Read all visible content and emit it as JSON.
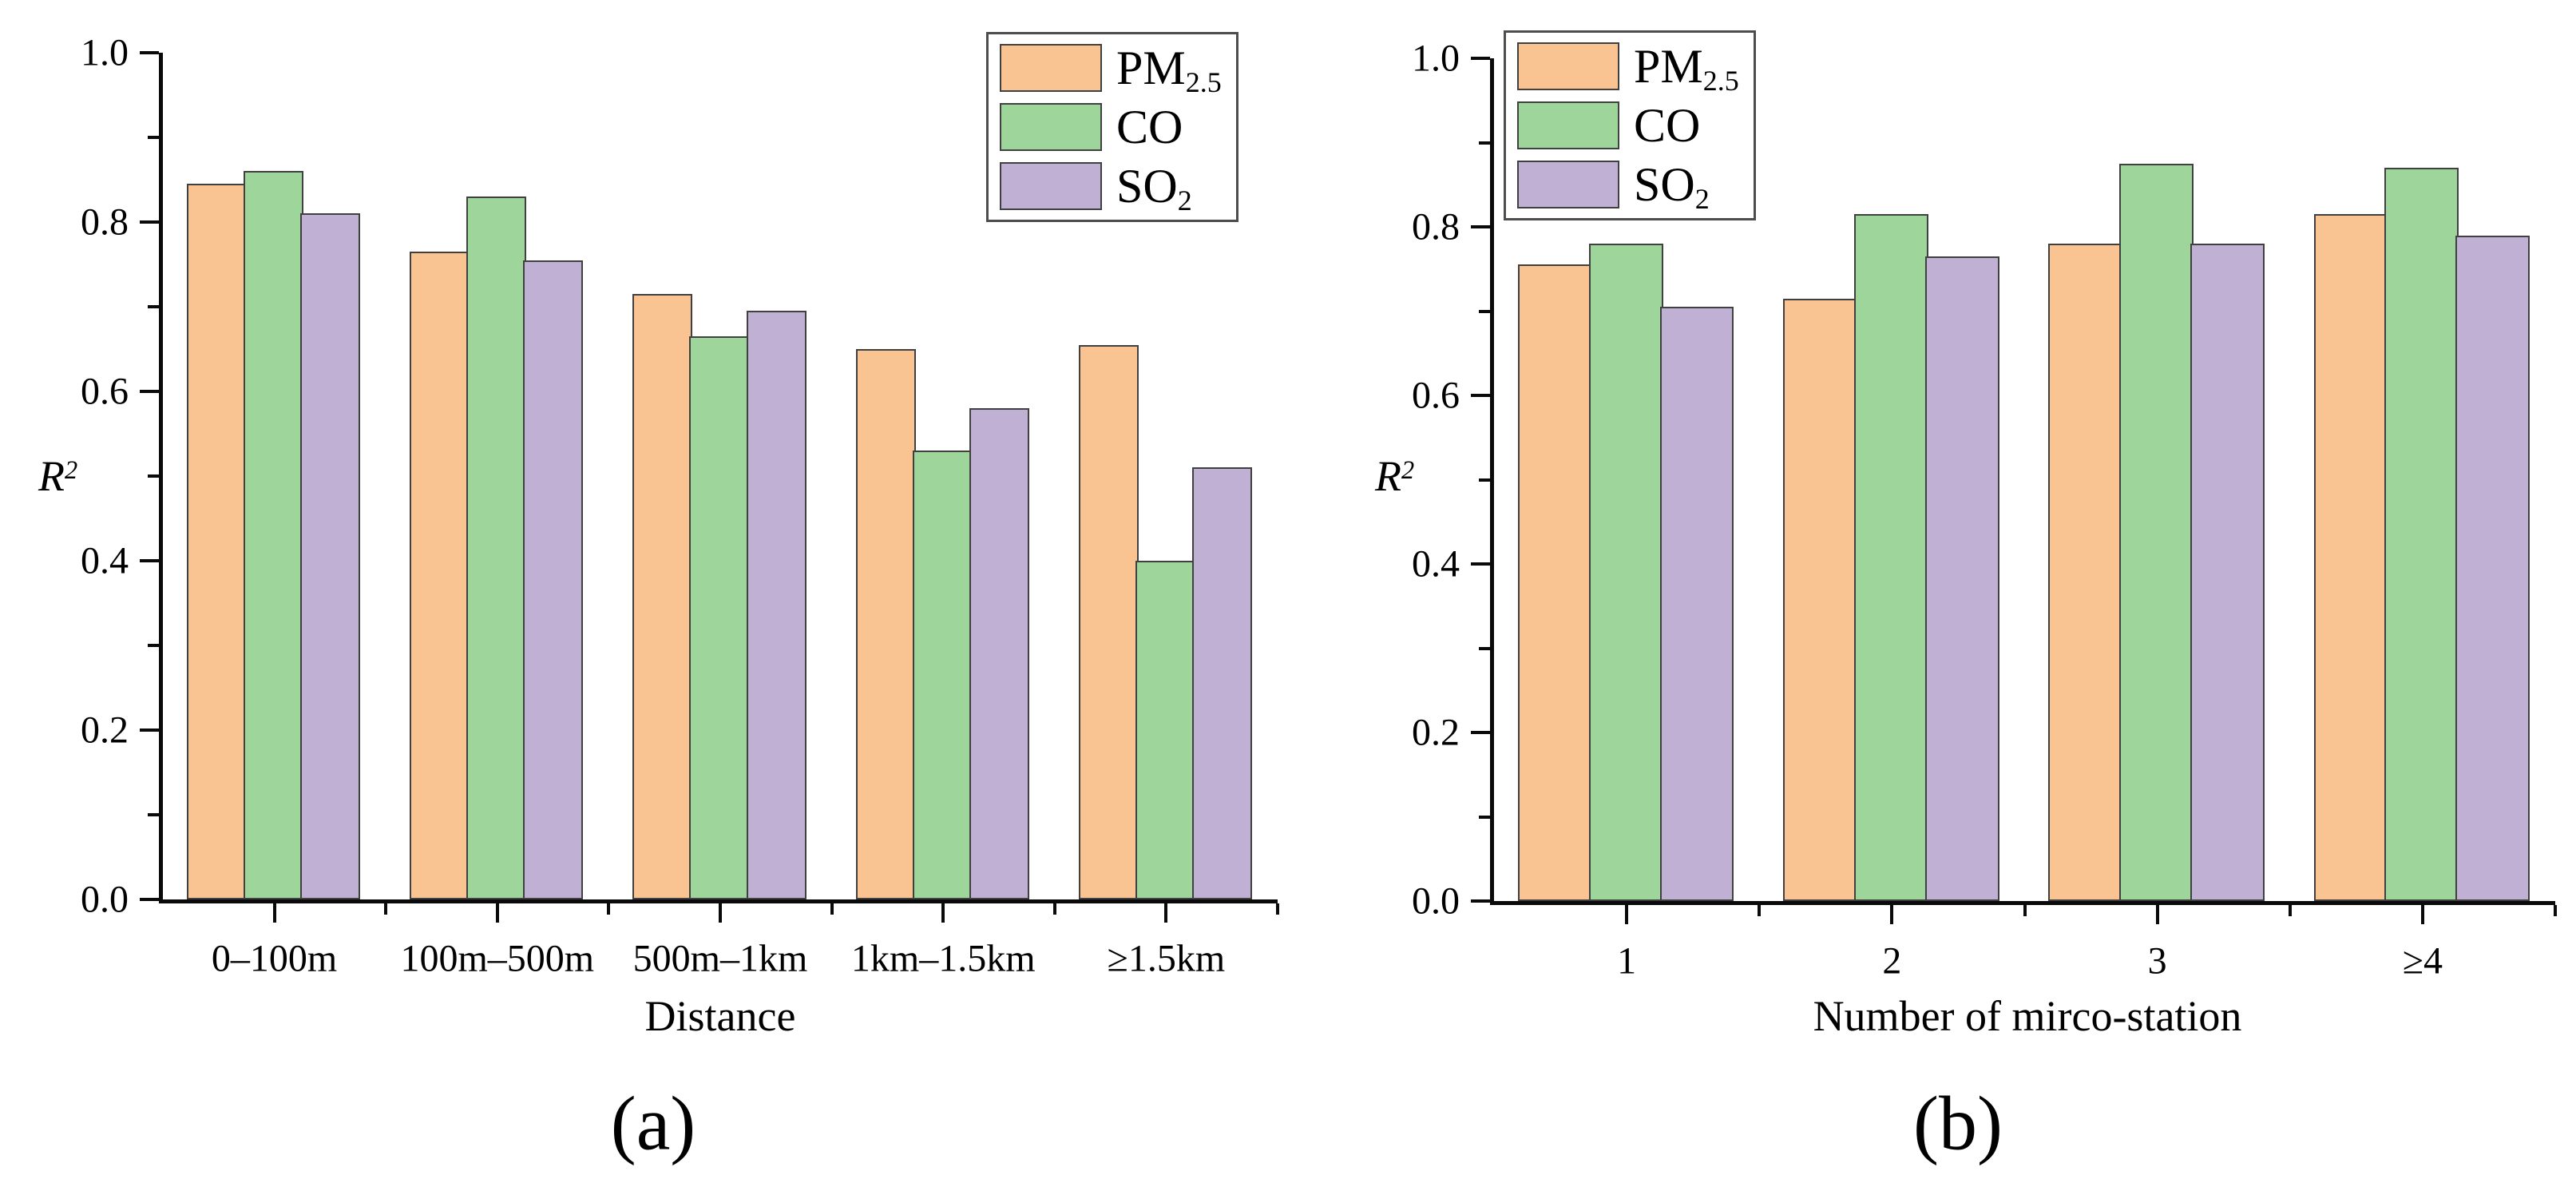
{
  "figure": {
    "background": "#ffffff",
    "bar_border_color": "#404040",
    "axis_color": "#0a0a0a",
    "sublabels": [
      "(a)",
      "(b)"
    ]
  },
  "chart_data": [
    {
      "id": "a",
      "type": "bar",
      "sublabel": "(a)",
      "title": "",
      "xlabel": "Distance",
      "ylabel": "R^{2}",
      "ylim": [
        0.0,
        1.0
      ],
      "yticks": [
        "0.0",
        "0.2",
        "0.4",
        "0.6",
        "0.8",
        "1.0"
      ],
      "grid": false,
      "legend_position": "top-right-inside",
      "categories": [
        "0–100m",
        "100m–500m",
        "500m–1km",
        "1km–1.5km",
        "≥1.5km"
      ],
      "series": [
        {
          "name": "PM_{2.5}",
          "key": "pm25",
          "color": "#FAC392",
          "values": [
            0.845,
            0.765,
            0.715,
            0.65,
            0.655
          ]
        },
        {
          "name": "CO",
          "key": "co",
          "color": "#9DD59B",
          "values": [
            0.86,
            0.83,
            0.665,
            0.53,
            0.4
          ]
        },
        {
          "name": "SO_{2}",
          "key": "so2",
          "color": "#C0B1D4",
          "values": [
            0.81,
            0.755,
            0.695,
            0.58,
            0.51
          ]
        }
      ]
    },
    {
      "id": "b",
      "type": "bar",
      "sublabel": "(b)",
      "title": "",
      "xlabel": "Number of mirco-station",
      "ylabel": "R^{2}",
      "ylim": [
        0.0,
        1.0
      ],
      "yticks": [
        "0.0",
        "0.2",
        "0.4",
        "0.6",
        "0.8",
        "1.0"
      ],
      "grid": false,
      "legend_position": "top-left-inside",
      "categories": [
        "1",
        "2",
        "3",
        "≥4"
      ],
      "series": [
        {
          "name": "PM_{2.5}",
          "key": "pm25",
          "color": "#FAC392",
          "values": [
            0.755,
            0.715,
            0.78,
            0.815
          ]
        },
        {
          "name": "CO",
          "key": "co",
          "color": "#9DD59B",
          "values": [
            0.78,
            0.815,
            0.875,
            0.87
          ]
        },
        {
          "name": "SO_{2}",
          "key": "so2",
          "color": "#C0B1D4",
          "values": [
            0.705,
            0.765,
            0.78,
            0.79
          ]
        }
      ]
    }
  ]
}
